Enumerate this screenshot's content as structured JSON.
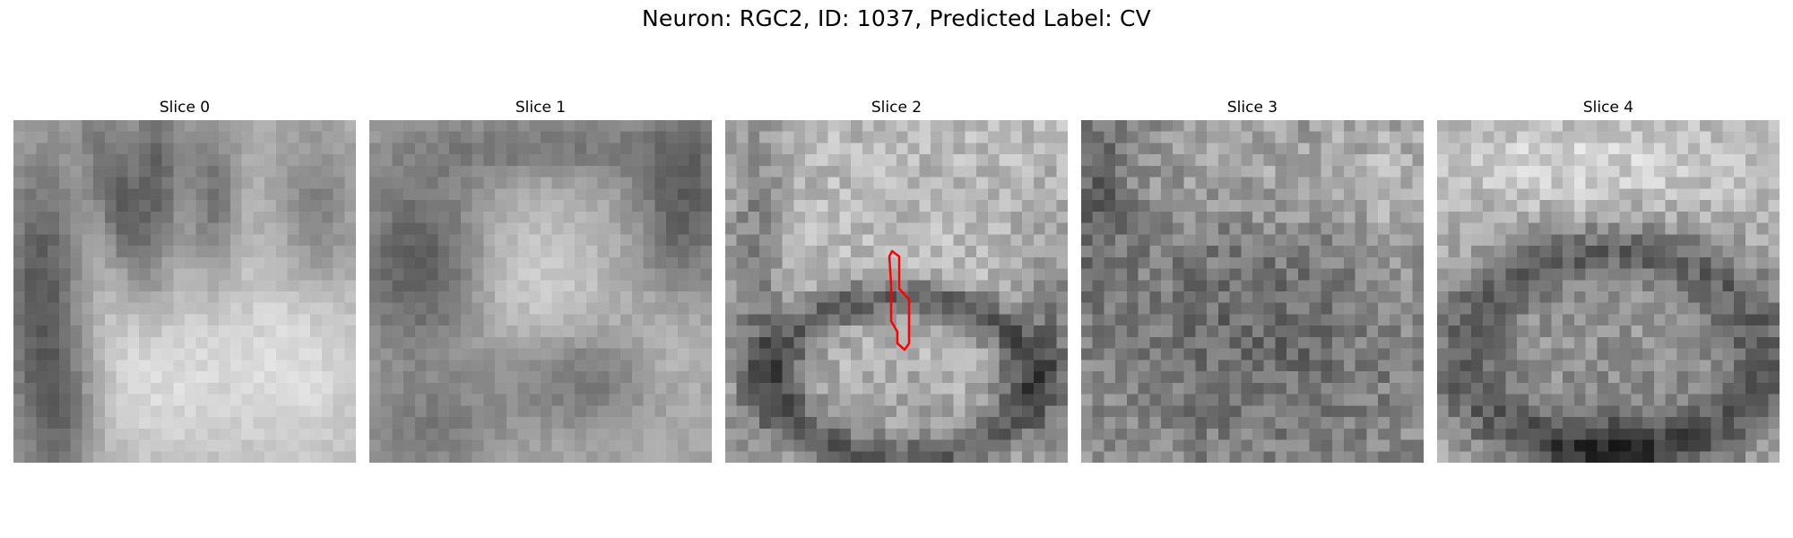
{
  "figure": {
    "title": "Neuron: RGC2, ID: 1037, Predicted Label: CV"
  },
  "panels": [
    {
      "title": "Slice 0",
      "pattern": "slice0",
      "seed": 11
    },
    {
      "title": "Slice 1",
      "pattern": "slice1",
      "seed": 23
    },
    {
      "title": "Slice 2",
      "pattern": "slice2",
      "seed": 37
    },
    {
      "title": "Slice 3",
      "pattern": "slice3",
      "seed": 41
    },
    {
      "title": "Slice 4",
      "pattern": "slice4",
      "seed": 53
    }
  ],
  "contour": {
    "panel_index": 2,
    "color": "#ff0000"
  }
}
